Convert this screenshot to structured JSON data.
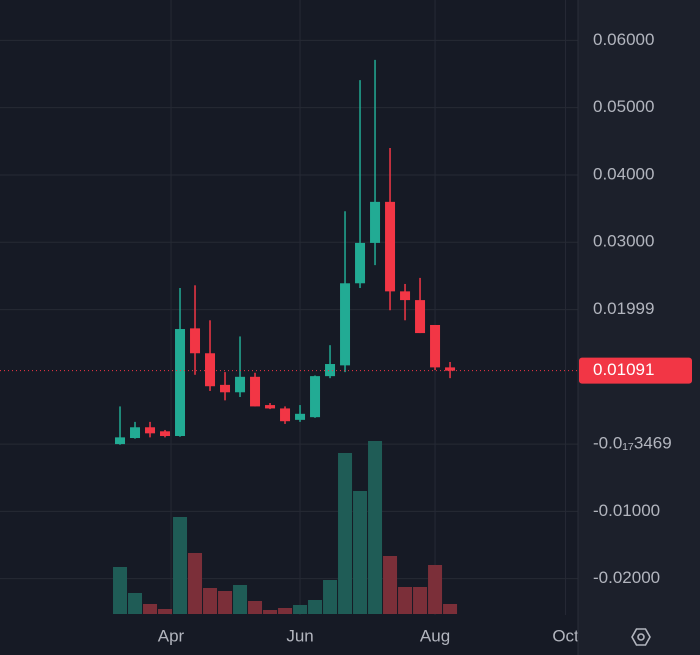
{
  "chart_data": {
    "type": "candlestick",
    "x": [
      0,
      1,
      2,
      3,
      4,
      5,
      6,
      7,
      8,
      9,
      10,
      11,
      12,
      13,
      14,
      15,
      16,
      17,
      18,
      19,
      20,
      21,
      22
    ],
    "open": [
      0.0,
      0.0009,
      0.0025,
      0.0019,
      0.0012,
      0.0172,
      0.0135,
      0.0088,
      0.0077,
      0.01,
      0.0058,
      0.0053,
      0.0036,
      0.004,
      0.0101,
      0.0117,
      0.0239,
      0.0299,
      0.036,
      0.0227,
      0.0214,
      0.0177,
      0.0114
    ],
    "high": [
      0.0056,
      0.0033,
      0.0033,
      0.0021,
      0.0232,
      0.0236,
      0.0184,
      0.0107,
      0.016,
      0.0106,
      0.0061,
      0.0056,
      0.0058,
      0.0102,
      0.0147,
      0.0346,
      0.0541,
      0.0571,
      0.044,
      0.0238,
      0.0247,
      0.0177,
      0.0122
    ],
    "low": [
      -0.0001,
      0.0008,
      0.001,
      0.001,
      0.0011,
      0.0103,
      0.0079,
      0.0065,
      0.007,
      0.0056,
      0.0052,
      0.003,
      0.0033,
      0.0039,
      0.0098,
      0.0107,
      0.0232,
      0.0266,
      0.0199,
      0.0184,
      0.0165,
      0.011,
      0.0098
    ],
    "close": [
      0.001,
      0.0025,
      0.0016,
      0.0012,
      0.0171,
      0.0135,
      0.0086,
      0.0077,
      0.01,
      0.0056,
      0.0053,
      0.0034,
      0.0045,
      0.0101,
      0.0119,
      0.0239,
      0.0299,
      0.036,
      0.0227,
      0.0214,
      0.0165,
      0.0114,
      0.01091
    ],
    "volume": [
      47,
      21,
      10,
      5,
      97,
      61,
      26,
      23,
      29,
      13,
      4,
      6,
      9,
      14,
      34,
      161,
      123,
      173,
      58,
      27,
      27,
      49,
      10
    ],
    "up_color": "#22ab94",
    "down_color": "#f23645",
    "up_volume_color": "#1f5c56",
    "down_volume_color": "#7b2f39",
    "ylim": [
      -0.0254,
      0.066
    ],
    "yticks": [
      {
        "value": 0.06,
        "label": "0.06000"
      },
      {
        "value": 0.05,
        "label": "0.05000"
      },
      {
        "value": 0.04,
        "label": "0.04000"
      },
      {
        "value": 0.03,
        "label": "0.03000"
      },
      0.01999,
      {
        "value": -3.469e-19,
        "label": "-0.0₁₇3469"
      },
      {
        "value": -0.01,
        "label": "-0.01000"
      },
      {
        "value": -0.02,
        "label": "-0.02000"
      }
    ],
    "xlim": [
      -8,
      30.53
    ],
    "xticks": [
      {
        "value": 3.4,
        "label": "Apr"
      },
      {
        "value": 12,
        "label": "Jun"
      },
      {
        "value": 21,
        "label": "Aug"
      },
      {
        "value": 29.7,
        "label": "Oct"
      }
    ],
    "last_price": 0.01091,
    "grid": true
  }
}
